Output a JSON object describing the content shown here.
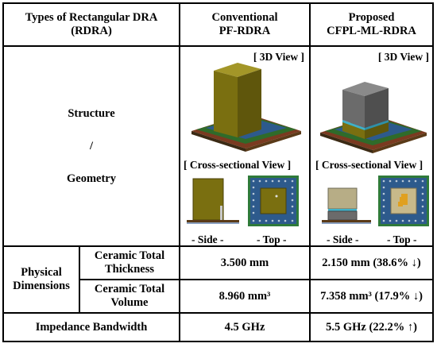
{
  "header": {
    "col1_line1": "Types of Rectangular DRA",
    "col1_line2": "(RDRA)",
    "col2_line1": "Conventional",
    "col2_line2": "PF-RDRA",
    "col3_line1": "Proposed",
    "col3_line2": "CFPL-ML-RDRA"
  },
  "structure": {
    "label_line1": "Structure",
    "label_line2": "/",
    "label_line3": "Geometry",
    "view_3d": "[ 3D View ]",
    "view_cross": "[ Cross-sectional View ]",
    "side_caption": "- Side -",
    "top_caption": "- Top -"
  },
  "physical": {
    "group_line1": "Physical",
    "group_line2": "Dimensions",
    "thickness_line1": "Ceramic Total",
    "thickness_line2": "Thickness",
    "volume_line1": "Ceramic Total",
    "volume_line2": "Volume",
    "conv_thickness": "3.500 mm",
    "prop_thickness": "2.150 mm (38.6% ↓)",
    "conv_volume": "8.960 mm³",
    "prop_volume": "7.358 mm³ (17.9% ↓)"
  },
  "bandwidth": {
    "label": "Impedance Bandwidth",
    "conv": "4.5 GHz",
    "prop": "5.5 GHz (22.2% ↑)"
  },
  "colors": {
    "olive": "#7a6f10",
    "gray_block": "#6b6b6b",
    "board_green": "#2f6b2a",
    "substrate_blue": "#2d5a8c"
  }
}
